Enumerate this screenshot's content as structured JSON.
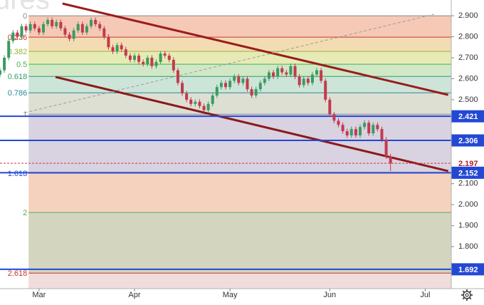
{
  "chart_data": {
    "type": "candlestick",
    "watermark": "ures",
    "x": [
      0,
      1,
      2,
      3,
      4,
      5,
      6,
      7,
      8,
      9,
      10,
      11,
      12,
      13,
      14,
      15,
      16,
      17,
      18,
      19,
      20,
      21,
      22,
      23,
      24,
      25,
      26,
      27,
      28,
      29,
      30,
      31,
      32,
      33,
      34,
      35,
      36,
      37,
      38,
      39,
      40,
      41,
      42,
      43,
      44,
      45,
      46,
      47,
      48,
      49,
      50,
      51,
      52,
      53,
      54,
      55,
      56,
      57,
      58,
      59,
      60,
      61,
      62,
      63,
      64,
      65,
      66,
      67,
      68,
      69,
      70,
      71,
      72,
      73,
      74,
      75,
      76,
      77,
      78,
      79,
      80,
      81,
      82,
      83,
      84,
      85,
      86,
      87,
      88,
      89,
      90
    ],
    "open": [
      2.62,
      2.64,
      2.7,
      2.78,
      2.82,
      2.8,
      2.85,
      2.83,
      2.86,
      2.84,
      2.82,
      2.86,
      2.88,
      2.85,
      2.87,
      2.84,
      2.81,
      2.79,
      2.83,
      2.86,
      2.82,
      2.85,
      2.88,
      2.86,
      2.84,
      2.8,
      2.75,
      2.73,
      2.76,
      2.74,
      2.71,
      2.69,
      2.71,
      2.68,
      2.67,
      2.7,
      2.66,
      2.68,
      2.72,
      2.71,
      2.69,
      2.64,
      2.58,
      2.53,
      2.5,
      2.48,
      2.49,
      2.47,
      2.45,
      2.48,
      2.52,
      2.56,
      2.58,
      2.56,
      2.59,
      2.61,
      2.58,
      2.6,
      2.55,
      2.52,
      2.55,
      2.58,
      2.6,
      2.63,
      2.61,
      2.65,
      2.63,
      2.62,
      2.66,
      2.61,
      2.57,
      2.6,
      2.58,
      2.62,
      2.64,
      2.59,
      2.5,
      2.43,
      2.4,
      2.38,
      2.35,
      2.33,
      2.36,
      2.33,
      2.37,
      2.39,
      2.34,
      2.38,
      2.36,
      2.31,
      2.23
    ],
    "high": [
      2.652,
      2.712,
      2.792,
      2.832,
      2.832,
      2.862,
      2.862,
      2.872,
      2.872,
      2.852,
      2.872,
      2.892,
      2.892,
      2.882,
      2.882,
      2.852,
      2.822,
      2.842,
      2.872,
      2.872,
      2.862,
      2.892,
      2.892,
      2.872,
      2.852,
      2.812,
      2.762,
      2.772,
      2.772,
      2.752,
      2.722,
      2.722,
      2.722,
      2.692,
      2.712,
      2.712,
      2.692,
      2.732,
      2.732,
      2.722,
      2.702,
      2.652,
      2.592,
      2.542,
      2.512,
      2.502,
      2.502,
      2.482,
      2.492,
      2.532,
      2.572,
      2.592,
      2.592,
      2.602,
      2.622,
      2.622,
      2.612,
      2.612,
      2.562,
      2.562,
      2.592,
      2.612,
      2.642,
      2.642,
      2.662,
      2.662,
      2.642,
      2.672,
      2.672,
      2.622,
      2.612,
      2.612,
      2.632,
      2.652,
      2.652,
      2.602,
      2.512,
      2.442,
      2.412,
      2.392,
      2.362,
      2.372,
      2.372,
      2.382,
      2.402,
      2.402,
      2.392,
      2.392,
      2.372,
      2.322,
      2.242
    ],
    "low": [
      2.608,
      2.628,
      2.688,
      2.768,
      2.788,
      2.788,
      2.818,
      2.818,
      2.828,
      2.808,
      2.808,
      2.848,
      2.838,
      2.838,
      2.828,
      2.798,
      2.778,
      2.778,
      2.818,
      2.808,
      2.808,
      2.838,
      2.848,
      2.828,
      2.788,
      2.738,
      2.718,
      2.718,
      2.728,
      2.698,
      2.678,
      2.678,
      2.668,
      2.658,
      2.658,
      2.648,
      2.648,
      2.668,
      2.698,
      2.678,
      2.628,
      2.568,
      2.518,
      2.488,
      2.468,
      2.468,
      2.458,
      2.438,
      2.438,
      2.468,
      2.508,
      2.548,
      2.548,
      2.548,
      2.578,
      2.568,
      2.568,
      2.538,
      2.508,
      2.508,
      2.538,
      2.568,
      2.588,
      2.598,
      2.598,
      2.618,
      2.608,
      2.608,
      2.598,
      2.558,
      2.558,
      2.568,
      2.568,
      2.608,
      2.578,
      2.488,
      2.418,
      2.388,
      2.368,
      2.338,
      2.318,
      2.318,
      2.318,
      2.318,
      2.358,
      2.328,
      2.328,
      2.348,
      2.298,
      2.218,
      2.16
    ],
    "close": [
      2.64,
      2.7,
      2.78,
      2.82,
      2.8,
      2.85,
      2.83,
      2.86,
      2.84,
      2.82,
      2.86,
      2.88,
      2.85,
      2.87,
      2.84,
      2.81,
      2.79,
      2.83,
      2.86,
      2.82,
      2.85,
      2.88,
      2.86,
      2.84,
      2.8,
      2.75,
      2.73,
      2.76,
      2.74,
      2.71,
      2.69,
      2.71,
      2.68,
      2.67,
      2.7,
      2.66,
      2.68,
      2.72,
      2.71,
      2.69,
      2.64,
      2.58,
      2.53,
      2.5,
      2.48,
      2.49,
      2.47,
      2.45,
      2.48,
      2.52,
      2.56,
      2.58,
      2.56,
      2.59,
      2.61,
      2.58,
      2.6,
      2.55,
      2.52,
      2.55,
      2.58,
      2.6,
      2.63,
      2.61,
      2.65,
      2.63,
      2.62,
      2.66,
      2.61,
      2.57,
      2.6,
      2.58,
      2.62,
      2.64,
      2.59,
      2.5,
      2.43,
      2.4,
      2.38,
      2.35,
      2.33,
      2.36,
      2.33,
      2.37,
      2.39,
      2.34,
      2.38,
      2.36,
      2.31,
      2.23,
      2.197
    ],
    "up_color": "#3b9b62",
    "down_color": "#c23a4f",
    "xlim": [
      0,
      104
    ],
    "ylim": [
      1.6,
      2.975
    ],
    "xticks": [
      {
        "value": 9,
        "label": "Mar"
      },
      {
        "value": 31,
        "label": "Apr"
      },
      {
        "value": 53,
        "label": "May"
      },
      {
        "value": 76,
        "label": "Jun"
      },
      {
        "value": 98,
        "label": "Jul"
      }
    ],
    "yticks": [
      {
        "value": 1.8,
        "label": "1.800"
      },
      {
        "value": 1.9,
        "label": "1.900"
      },
      {
        "value": 2.0,
        "label": "2.000"
      },
      {
        "value": 2.1,
        "label": "2.100"
      },
      {
        "value": 2.5,
        "label": "2.500"
      },
      {
        "value": 2.6,
        "label": "2.600"
      },
      {
        "value": 2.7,
        "label": "2.700"
      },
      {
        "value": 2.8,
        "label": "2.800"
      },
      {
        "value": 2.9,
        "label": "2.900"
      }
    ],
    "fib_start": 6.6,
    "fib_levels": [
      {
        "value": 2.9,
        "label": "0",
        "color": "#8a8a8a",
        "fill": "#f5c9b6"
      },
      {
        "value": 2.798,
        "label": "0.236",
        "color": "#c0392b",
        "fill": "#f3dcb3"
      },
      {
        "value": 2.73,
        "label": "0.382",
        "color": "#9ab53a",
        "fill": "#e6ebb6"
      },
      {
        "value": 2.669,
        "label": "0.5",
        "color": "#4caf50",
        "fill": "#d1e8c6"
      },
      {
        "value": 2.611,
        "label": "0.618",
        "color": "#2e9e6a",
        "fill": "#cde5d8"
      },
      {
        "value": 2.533,
        "label": "0.786",
        "color": "#2a8a9a",
        "fill": "#dedfd3"
      },
      {
        "value": 2.431,
        "label": "1",
        "color": "#8a8a8a",
        "fill": "#d9d2e0"
      },
      {
        "value": 2.15,
        "label": "1.618",
        "color": "#2a4fd6",
        "fill": "#f5d2bd"
      },
      {
        "value": 1.963,
        "label": "2",
        "color": "#4caf50",
        "fill": "#d4d5bf"
      },
      {
        "value": 1.674,
        "label": "2.618",
        "color": "#c0392b",
        "fill": "#f1dcdc"
      }
    ],
    "trend_lines": [
      {
        "x": [
          14.4,
          103.3
        ],
        "values": [
          2.958,
          2.523
        ],
        "color": "#9b1c1c",
        "dash": false
      },
      {
        "x": [
          12.8,
          103.3
        ],
        "values": [
          2.608,
          2.16
        ],
        "color": "#8b1a1a",
        "dash": false
      },
      {
        "x": [
          5.7,
          100
        ],
        "values": [
          2.438,
          2.907
        ],
        "color": "#9a9a9a",
        "dash": true
      }
    ],
    "price_lines": [
      {
        "value": 2.421,
        "color": "#2348d4",
        "text": "#ffffff",
        "dash": false
      },
      {
        "value": 2.306,
        "color": "#2348d4",
        "text": "#ffffff",
        "dash": false
      },
      {
        "value": 2.197,
        "color": "#d0344a",
        "text": "#b0202e",
        "dash": true
      },
      {
        "value": 2.152,
        "color": "#2348d4",
        "text": "#ffffff",
        "dash": false
      },
      {
        "value": 1.692,
        "color": "#2348d4",
        "text": "#ffffff",
        "dash": false
      }
    ]
  }
}
